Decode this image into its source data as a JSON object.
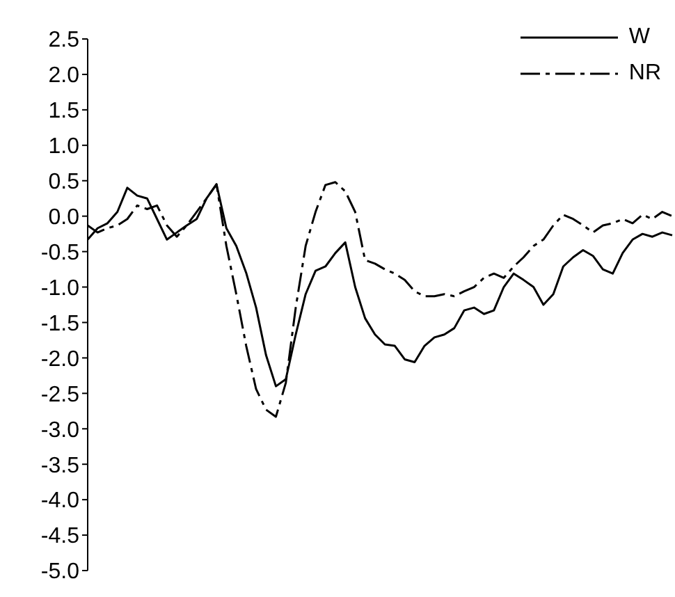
{
  "chart_data": {
    "type": "line",
    "categories": [
      null,
      null,
      null,
      null,
      null,
      null,
      null,
      null,
      null,
      null,
      null,
      null,
      null,
      null,
      null,
      null,
      null,
      null,
      null,
      null,
      null,
      null,
      null,
      null,
      null,
      null,
      null,
      null,
      null,
      null,
      null,
      null,
      null,
      null,
      null,
      null,
      null,
      null,
      null,
      null,
      null,
      null,
      null,
      null,
      null,
      null,
      null,
      null,
      null,
      null,
      null,
      null,
      null,
      null,
      null,
      null,
      null,
      null,
      null,
      null
    ],
    "series": [
      {
        "name": "W",
        "color": "#000000",
        "line_style": "solid",
        "values": [
          -0.33,
          -0.17,
          -0.1,
          0.06,
          0.4,
          0.29,
          0.25,
          -0.04,
          -0.33,
          -0.23,
          -0.13,
          -0.04,
          0.25,
          0.45,
          -0.17,
          -0.42,
          -0.8,
          -1.29,
          -1.96,
          -2.4,
          -2.3,
          -1.67,
          -1.1,
          -0.77,
          -0.71,
          -0.52,
          -0.37,
          -1.0,
          -1.44,
          -1.67,
          -1.81,
          -1.83,
          -2.02,
          -2.06,
          -1.83,
          -1.71,
          -1.67,
          -1.58,
          -1.33,
          -1.29,
          -1.38,
          -1.33,
          -1.0,
          -0.81,
          -0.9,
          -1.0,
          -1.25,
          -1.1,
          -0.71,
          -0.58,
          -0.48,
          -0.56,
          -0.75,
          -0.81,
          -0.52,
          -0.33,
          -0.25,
          -0.29,
          -0.23,
          -0.27
        ]
      },
      {
        "name": "NR",
        "color": "#000000",
        "line_style": "dashed",
        "values": [
          -0.13,
          -0.23,
          -0.17,
          -0.13,
          -0.04,
          0.15,
          0.1,
          0.15,
          -0.13,
          -0.29,
          -0.13,
          0.06,
          0.25,
          0.45,
          -0.42,
          -1.1,
          -1.83,
          -2.44,
          -2.73,
          -2.83,
          -2.35,
          -1.29,
          -0.42,
          0.06,
          0.44,
          0.48,
          0.35,
          0.06,
          -0.62,
          -0.67,
          -0.75,
          -0.81,
          -0.9,
          -1.06,
          -1.13,
          -1.13,
          -1.1,
          -1.13,
          -1.06,
          -1.0,
          -0.87,
          -0.81,
          -0.87,
          -0.71,
          -0.58,
          -0.42,
          -0.33,
          -0.13,
          0.02,
          -0.04,
          -0.13,
          -0.23,
          -0.13,
          -0.1,
          -0.04,
          -0.1,
          0.02,
          -0.04,
          0.06,
          0.0
        ]
      }
    ],
    "ylim": [
      -5.0,
      2.5
    ],
    "yticks": [
      {
        "value": 2.5,
        "label": "2.5"
      },
      {
        "value": 2.0,
        "label": "2.0"
      },
      {
        "value": 1.5,
        "label": "1.5"
      },
      {
        "value": 1.0,
        "label": "1.0"
      },
      {
        "value": 0.5,
        "label": "0.5"
      },
      {
        "value": 0,
        "label": "0.0"
      },
      {
        "value": -0.5,
        "label": "-0.5"
      },
      {
        "value": -1.0,
        "label": "-1.0"
      },
      {
        "value": -1.5,
        "label": "-1.5"
      },
      {
        "value": -2.0,
        "label": "-2.0"
      },
      {
        "value": -2.5,
        "label": "-2.5"
      },
      {
        "value": -3.0,
        "label": "-3.0"
      },
      {
        "value": -3.5,
        "label": "-3.5"
      },
      {
        "value": -4.0,
        "label": "-4.0"
      },
      {
        "value": -4.5,
        "label": "-4.5"
      },
      {
        "value": -5.0,
        "label": "-5.0"
      }
    ],
    "tick_labels": "y",
    "grid": false,
    "legend": "top right",
    "marker": "none"
  }
}
